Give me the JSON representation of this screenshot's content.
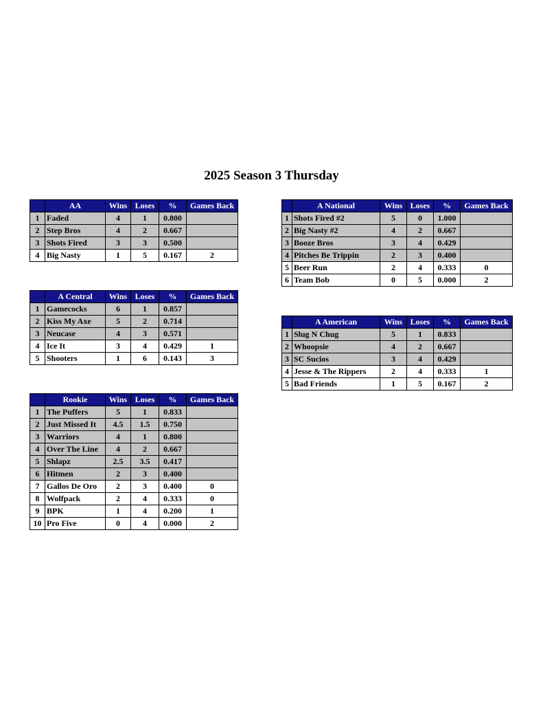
{
  "title": "2025 Season 3 Thursday",
  "colors": {
    "header_bg": "#14148a",
    "header_text": "#ffffff",
    "qualified_row": "#c4c4c4"
  },
  "columns": {
    "wins": "Wins",
    "loses": "Loses",
    "pct": "%",
    "gb": "Games Back"
  },
  "tables": [
    {
      "name": "AA",
      "rows": [
        [
          "1",
          "Faded",
          "4",
          "1",
          "0.800",
          ""
        ],
        [
          "2",
          "Step Bros",
          "4",
          "2",
          "0.667",
          ""
        ],
        [
          "3",
          "Shots Fired",
          "3",
          "3",
          "0.500",
          ""
        ],
        [
          "4",
          "Big Nasty",
          "1",
          "5",
          "0.167",
          "2"
        ]
      ],
      "shaded": 3
    },
    {
      "name": "A Central",
      "rows": [
        [
          "1",
          "Gamecocks",
          "6",
          "1",
          "0.857",
          ""
        ],
        [
          "2",
          "Kiss My Axe",
          "5",
          "2",
          "0.714",
          ""
        ],
        [
          "3",
          "Neucase",
          "4",
          "3",
          "0.571",
          ""
        ],
        [
          "4",
          "Ice It",
          "3",
          "4",
          "0.429",
          "1"
        ],
        [
          "5",
          "Shooters",
          "1",
          "6",
          "0.143",
          "3"
        ]
      ],
      "shaded": 3
    },
    {
      "name": "Rookie",
      "rows": [
        [
          "1",
          "The Puffers",
          "5",
          "1",
          "0.833",
          ""
        ],
        [
          "2",
          "Just Missed It",
          "4.5",
          "1.5",
          "0.750",
          ""
        ],
        [
          "3",
          "Warriors",
          "4",
          "1",
          "0.800",
          ""
        ],
        [
          "4",
          "Over The Line",
          "4",
          "2",
          "0.667",
          ""
        ],
        [
          "5",
          "Shlapz",
          "2.5",
          "3.5",
          "0.417",
          ""
        ],
        [
          "6",
          "Hitmen",
          "2",
          "3",
          "0.400",
          ""
        ],
        [
          "7",
          "Gallos De Oro",
          "2",
          "3",
          "0.400",
          "0"
        ],
        [
          "8",
          "Wolfpack",
          "2",
          "4",
          "0.333",
          "0"
        ],
        [
          "9",
          "BPK",
          "1",
          "4",
          "0.200",
          "1"
        ],
        [
          "10",
          "Pro Five",
          "0",
          "4",
          "0.000",
          "2"
        ]
      ],
      "shaded": 6
    },
    {
      "name": "A National",
      "rows": [
        [
          "1",
          "Shots Fired #2",
          "5",
          "0",
          "1.000",
          ""
        ],
        [
          "2",
          "Big Nasty #2",
          "4",
          "2",
          "0.667",
          ""
        ],
        [
          "3",
          "Booze Bros",
          "3",
          "4",
          "0.429",
          ""
        ],
        [
          "4",
          "Pitches Be Trippin",
          "2",
          "3",
          "0.400",
          ""
        ],
        [
          "5",
          "Beer Run",
          "2",
          "4",
          "0.333",
          "0"
        ],
        [
          "6",
          "Team Bob",
          "0",
          "5",
          "0.000",
          "2"
        ]
      ],
      "shaded": 4
    },
    {
      "name": "A American",
      "rows": [
        [
          "1",
          "Slug N Chug",
          "5",
          "1",
          "0.833",
          ""
        ],
        [
          "2",
          "Whoopsie",
          "4",
          "2",
          "0.667",
          ""
        ],
        [
          "3",
          "SC Sucios",
          "3",
          "4",
          "0.429",
          ""
        ],
        [
          "4",
          "Jesse & The Rippers",
          "2",
          "4",
          "0.333",
          "1"
        ],
        [
          "5",
          "Bad Friends",
          "1",
          "5",
          "0.167",
          "2"
        ]
      ],
      "shaded": 3
    }
  ]
}
